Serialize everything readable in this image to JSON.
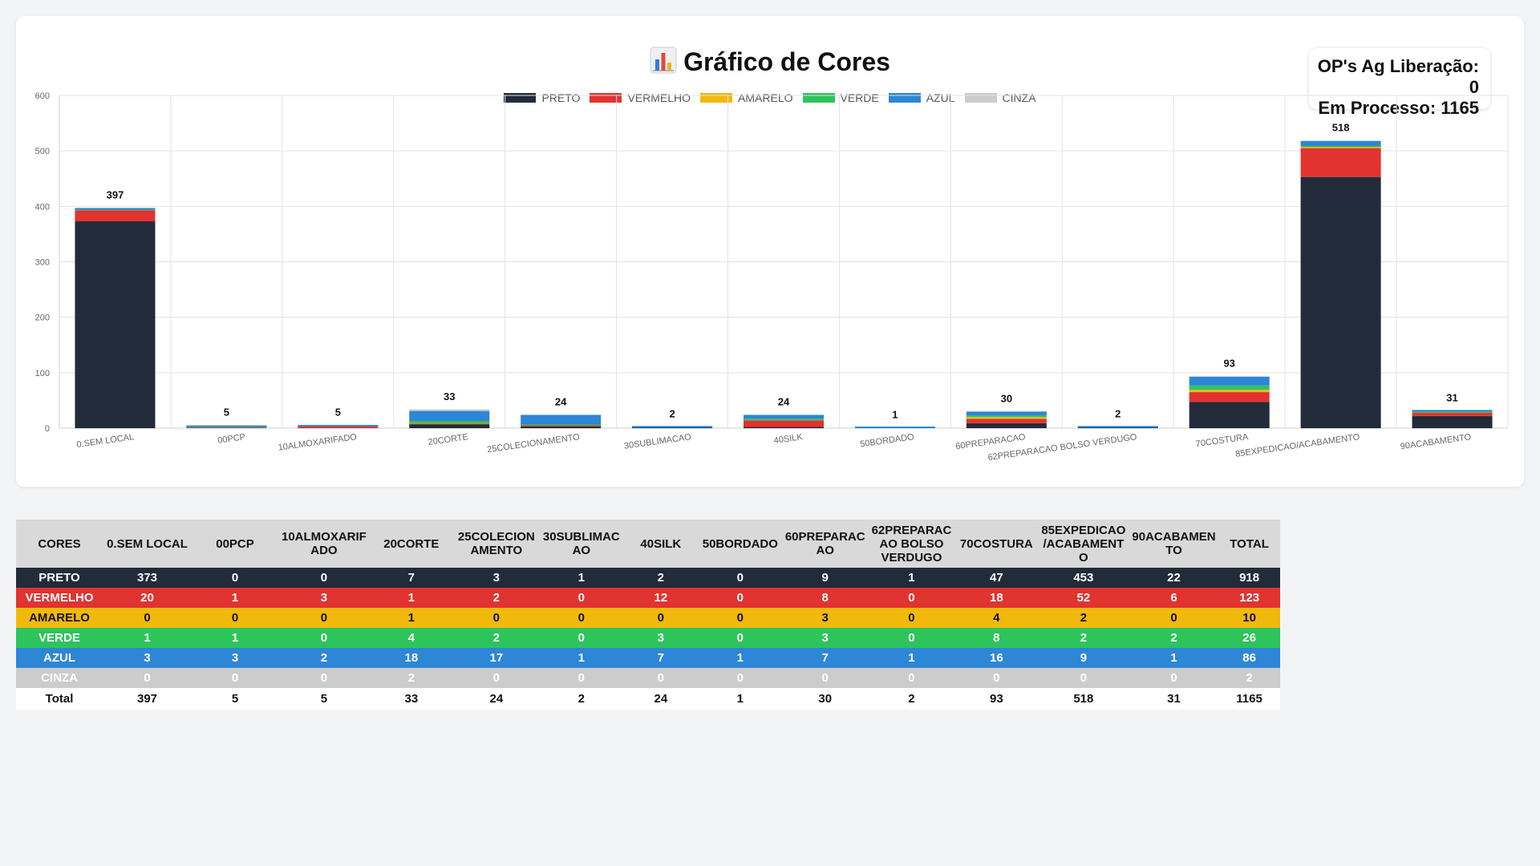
{
  "page": {
    "title_icon": "bar-chart-emoji-icon",
    "title": "Gráfico de Cores",
    "status": {
      "line1": "OP's Ag Liberação: 0",
      "line2": "Em Processo: 1165"
    }
  },
  "colors": {
    "PRETO": "#222b3a",
    "VERMELHO": "#e1332f",
    "AMARELO": "#f1b90c",
    "VERDE": "#2ec45c",
    "AZUL": "#2d86d6",
    "CINZA": "#cccccc"
  },
  "chart_data": {
    "type": "bar",
    "stacked": true,
    "title": "Gráfico de Cores",
    "categories": [
      "0.SEM LOCAL",
      "00PCP",
      "10ALMOXARIFADO",
      "20CORTE",
      "25COLECIONAMENTO",
      "30SUBLIMACAO",
      "40SILK",
      "50BORDADO",
      "60PREPARACAO",
      "62PREPARACAO BOLSO VERDUGO",
      "70COSTURA",
      "85EXPEDICAO/ACABAMENTO",
      "90ACABAMENTO"
    ],
    "series": [
      {
        "name": "PRETO",
        "values": [
          373,
          0,
          0,
          7,
          3,
          1,
          2,
          0,
          9,
          1,
          47,
          453,
          22
        ]
      },
      {
        "name": "VERMELHO",
        "values": [
          20,
          1,
          3,
          1,
          2,
          0,
          12,
          0,
          8,
          0,
          18,
          52,
          6
        ]
      },
      {
        "name": "AMARELO",
        "values": [
          0,
          0,
          0,
          1,
          0,
          0,
          0,
          0,
          3,
          0,
          4,
          2,
          0
        ]
      },
      {
        "name": "VERDE",
        "values": [
          1,
          1,
          0,
          4,
          2,
          0,
          3,
          0,
          3,
          0,
          8,
          2,
          2
        ]
      },
      {
        "name": "AZUL",
        "values": [
          3,
          3,
          2,
          18,
          17,
          1,
          7,
          1,
          7,
          1,
          16,
          9,
          1
        ]
      },
      {
        "name": "CINZA",
        "values": [
          0,
          0,
          0,
          2,
          0,
          0,
          0,
          0,
          0,
          0,
          0,
          0,
          0
        ]
      }
    ],
    "totals": [
      397,
      5,
      5,
      33,
      24,
      2,
      24,
      1,
      30,
      2,
      93,
      518,
      31
    ],
    "ylim": [
      0,
      600
    ],
    "yticks": [
      0,
      100,
      200,
      300,
      400,
      500,
      600
    ],
    "grid": true,
    "legend": "top"
  },
  "table": {
    "header_first": "CORES",
    "columns": [
      "0.SEM LOCAL",
      "00PCP",
      "10ALMOXARIFADO",
      "20CORTE",
      "25COLECIONAMENTO",
      "30SUBLIMACAO",
      "40SILK",
      "50BORDADO",
      "60PREPARACAO",
      "62PREPARACAO BOLSO VERDUGO",
      "70COSTURA",
      "85EXPEDICAO/ACABAMENTO",
      "90ACABAMENTO"
    ],
    "column_headers": [
      "0.SEM LOCAL",
      "00PCP",
      "10ALMOXARIF ADO",
      "20CORTE",
      "25COLECION AMENTO",
      "30SUBLIMAC AO",
      "40SILK",
      "50BORDADO",
      "60PREPARAC AO",
      "62PREPARAC AO BOLSO VERDUGO",
      "70COSTURA",
      "85EXPEDICAO /ACABAMENT O",
      "90ACABAMEN TO"
    ],
    "header_last": "TOTAL",
    "rows": [
      {
        "name": "PRETO",
        "values": [
          373,
          0,
          0,
          7,
          3,
          1,
          2,
          0,
          9,
          1,
          47,
          453,
          22
        ],
        "total": 918
      },
      {
        "name": "VERMELHO",
        "values": [
          20,
          1,
          3,
          1,
          2,
          0,
          12,
          0,
          8,
          0,
          18,
          52,
          6
        ],
        "total": 123
      },
      {
        "name": "AMARELO",
        "values": [
          0,
          0,
          0,
          1,
          0,
          0,
          0,
          0,
          3,
          0,
          4,
          2,
          0
        ],
        "total": 10
      },
      {
        "name": "VERDE",
        "values": [
          1,
          1,
          0,
          4,
          2,
          0,
          3,
          0,
          3,
          0,
          8,
          2,
          2
        ],
        "total": 26
      },
      {
        "name": "AZUL",
        "values": [
          3,
          3,
          2,
          18,
          17,
          1,
          7,
          1,
          7,
          1,
          16,
          9,
          1
        ],
        "total": 86
      },
      {
        "name": "CINZA",
        "values": [
          0,
          0,
          0,
          2,
          0,
          0,
          0,
          0,
          0,
          0,
          0,
          0,
          0
        ],
        "total": 2
      }
    ],
    "footer_label": "Total",
    "footer_values": [
      397,
      5,
      5,
      33,
      24,
      2,
      24,
      1,
      30,
      2,
      93,
      518,
      31
    ],
    "footer_total": 1165
  }
}
